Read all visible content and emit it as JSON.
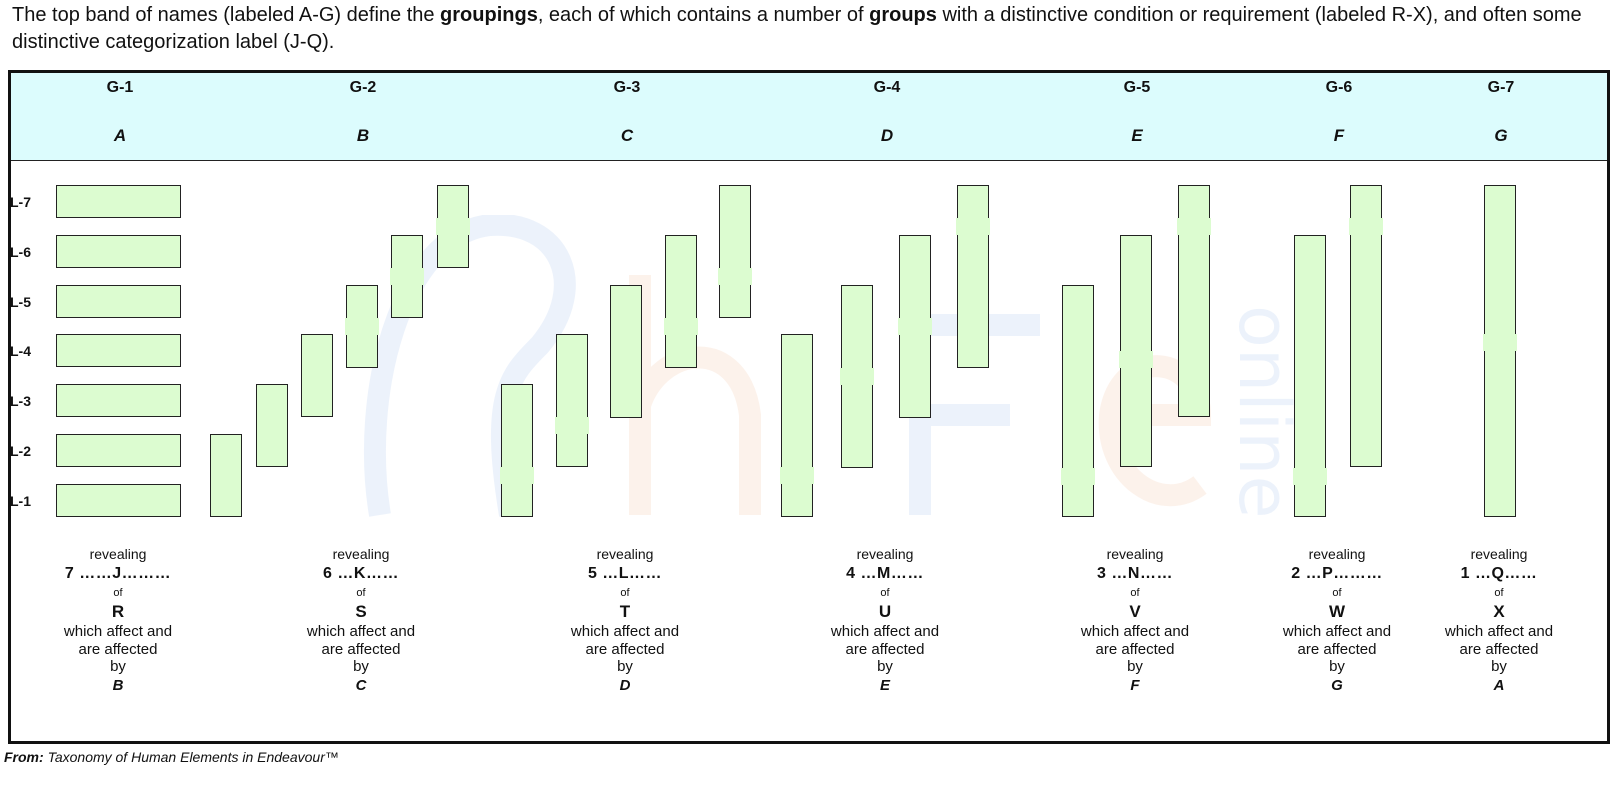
{
  "intro": {
    "part1": "The top band of names (labeled A-G) define the ",
    "groupings": "groupings",
    "part2": ", each of which contains a number of ",
    "groups": "groups",
    "part3": " with a distinctive condition or requirement (labeled R-X), and often some distinctive categorization label  (J-Q)."
  },
  "groupings": [
    {
      "name": "G-1",
      "letter": "A"
    },
    {
      "name": "G-2",
      "letter": "B"
    },
    {
      "name": "G-3",
      "letter": "C"
    },
    {
      "name": "G-4",
      "letter": "D"
    },
    {
      "name": "G-5",
      "letter": "E"
    },
    {
      "name": "G-6",
      "letter": "F"
    },
    {
      "name": "G-7",
      "letter": "G"
    }
  ],
  "levels": [
    "L-7",
    "L-6",
    "L-5",
    "L-4",
    "L-3",
    "L-2",
    "L-1"
  ],
  "captions": [
    {
      "revealing": "revealing",
      "count": "7 ……J………",
      "of": "of",
      "group": "R",
      "affect1": "which affect and",
      "affect2": "are affected",
      "by_word": "by",
      "by": "B"
    },
    {
      "revealing": "revealing",
      "count": "6 …K……",
      "of": "of",
      "group": "S",
      "affect1": "which affect and",
      "affect2": "are affected",
      "by_word": "by",
      "by": "C"
    },
    {
      "revealing": "revealing",
      "count": "5 …L……",
      "of": "of",
      "group": "T",
      "affect1": "which affect and",
      "affect2": "are affected",
      "by_word": "by",
      "by": "D"
    },
    {
      "revealing": "revealing",
      "count": "4 …M……",
      "of": "of",
      "group": "U",
      "affect1": "which affect and",
      "affect2": "are affected",
      "by_word": "by",
      "by": "E"
    },
    {
      "revealing": "revealing",
      "count": "3 …N……",
      "of": "of",
      "group": "V",
      "affect1": "which affect and",
      "affect2": "are affected",
      "by_word": "by",
      "by": "F"
    },
    {
      "revealing": "revealing",
      "count": "2 …P………",
      "of": "of",
      "group": "W",
      "affect1": "which affect and",
      "affect2": "are affected",
      "by_word": "by",
      "by": "G"
    },
    {
      "revealing": "revealing",
      "count": "1 …Q……",
      "of": "of",
      "group": "X",
      "affect1": "which affect and",
      "affect2": "are affected",
      "by_word": "by",
      "by": "A"
    }
  ],
  "from": {
    "label": "From:",
    "source": "Taxonomy of Human Elements in Endeavour™"
  },
  "colors": {
    "band": "#dcfcfd",
    "bar": "#dcfcd0",
    "border": "#222222"
  }
}
